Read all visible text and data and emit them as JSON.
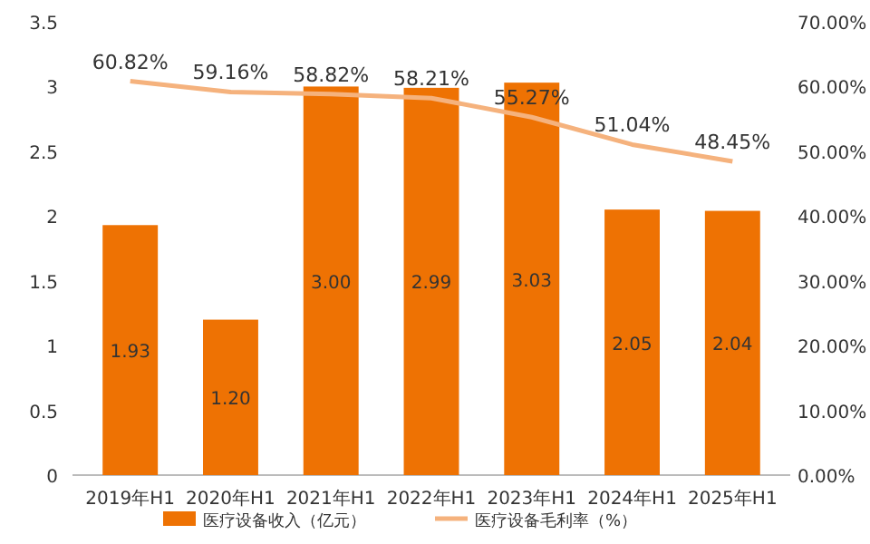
{
  "chart_data": {
    "type": "bar",
    "categories": [
      "2019年H1",
      "2020年H1",
      "2021年H1",
      "2022年H1",
      "2023年H1",
      "2024年H1",
      "2025年H1"
    ],
    "series": [
      {
        "name": "医疗设备收入（亿元）",
        "color": "#ee7203",
        "values": [
          1.93,
          1.2,
          3.0,
          2.99,
          3.03,
          2.05,
          2.04
        ],
        "value_labels": [
          "1.93",
          "1.20",
          "3.00",
          "2.99",
          "3.03",
          "2.05",
          "2.04"
        ]
      },
      {
        "name": "医疗设备毛利率（%）",
        "type": "line",
        "axis": "y2",
        "color": "#f5b27d",
        "values": [
          60.82,
          59.16,
          58.82,
          58.21,
          55.27,
          51.04,
          48.45
        ],
        "value_labels": [
          "60.82%",
          "59.16%",
          "58.82%",
          "58.21%",
          "55.27%",
          "51.04%",
          "48.45%"
        ]
      }
    ],
    "ylim": [
      0,
      3.5
    ],
    "yticks": [
      0,
      0.5,
      1,
      1.5,
      2,
      2.5,
      3,
      3.5
    ],
    "y2lim": [
      0,
      70
    ],
    "y2ticks": [
      {
        "value": 0,
        "label": "0.00%"
      },
      {
        "value": 10,
        "label": "10.00%"
      },
      {
        "value": 20,
        "label": "20.00%"
      },
      {
        "value": 30,
        "label": "30.00%"
      },
      {
        "value": 40,
        "label": "40.00%"
      },
      {
        "value": 50,
        "label": "50.00%"
      },
      {
        "value": 60,
        "label": "60.00%"
      },
      {
        "value": 70,
        "label": "70.00%"
      }
    ],
    "legend": "bottom",
    "marker": "none"
  }
}
